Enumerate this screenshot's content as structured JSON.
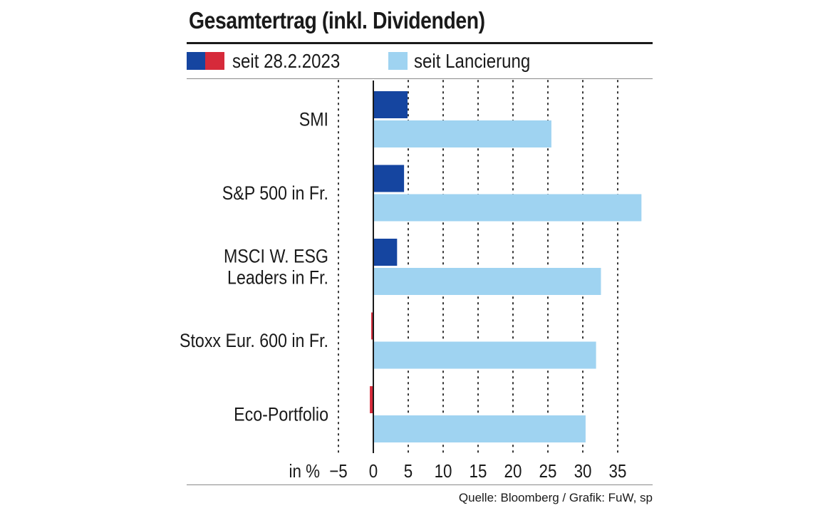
{
  "legend": {
    "series1_label": "seit 28.2.2023",
    "series1_color_positive": "#1545a0",
    "series1_color_negative": "#d62a3a",
    "series2_label": "seit Lancierung",
    "series2_color": "#9fd3f1"
  },
  "source": "Quelle: Bloomberg / Grafik: FuW, sp",
  "chart_data": {
    "type": "bar",
    "orientation": "horizontal",
    "title": "Gesamtertrag (inkl. Dividenden)",
    "unit_label": "in %",
    "categories": [
      [
        "SMI"
      ],
      [
        "S&P 500 in Fr."
      ],
      [
        "MSCI W. ESG",
        "Leaders in Fr."
      ],
      [
        "Stoxx Eur. 600 in Fr."
      ],
      [
        "Eco-Portfolio"
      ]
    ],
    "series": [
      {
        "name": "seit 28.2.2023",
        "values": [
          4.9,
          4.4,
          3.4,
          -0.2,
          -0.4
        ]
      },
      {
        "name": "seit Lancierung",
        "values": [
          25.5,
          38.4,
          32.6,
          31.9,
          30.4
        ]
      }
    ],
    "xlim": [
      -5,
      38.5
    ],
    "xticks": [
      -5,
      0,
      5,
      10,
      15,
      20,
      25,
      30,
      35
    ],
    "xtick_labels": [
      "−5",
      "0",
      "5",
      "10",
      "15",
      "20",
      "25",
      "30",
      "35"
    ],
    "grid": "vertical dotted",
    "legend_position": "top"
  }
}
